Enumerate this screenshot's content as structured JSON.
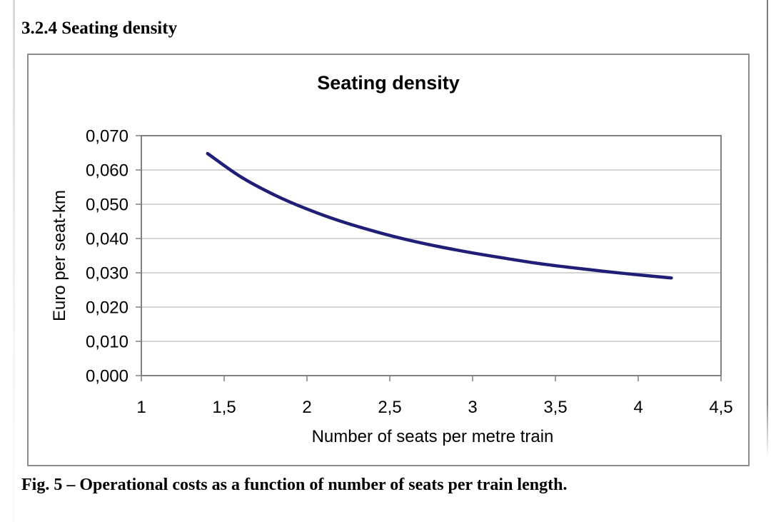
{
  "page": {
    "section_heading": "3.2.4 Seating density",
    "figure_caption": "Fig. 5 – Operational costs as a function of number of seats per train length."
  },
  "chart_data": {
    "type": "line",
    "title": "Seating density",
    "xlabel": "Number of seats per metre train",
    "ylabel": "Euro per seat-km",
    "xlim": [
      1,
      4.5
    ],
    "ylim": [
      0,
      0.07
    ],
    "grid": "horizontal-only",
    "legend_position": "none",
    "x_ticks": [
      {
        "value": 1,
        "label": "1"
      },
      {
        "value": 1.5,
        "label": "1,5"
      },
      {
        "value": 2,
        "label": "2"
      },
      {
        "value": 2.5,
        "label": "2,5"
      },
      {
        "value": 3,
        "label": "3"
      },
      {
        "value": 3.5,
        "label": "3,5"
      },
      {
        "value": 4,
        "label": "4"
      },
      {
        "value": 4.5,
        "label": "4,5"
      }
    ],
    "y_ticks": [
      {
        "value": 0,
        "label": "0,000"
      },
      {
        "value": 0.01,
        "label": "0,010"
      },
      {
        "value": 0.02,
        "label": "0,020"
      },
      {
        "value": 0.03,
        "label": "0,030"
      },
      {
        "value": 0.04,
        "label": "0,040"
      },
      {
        "value": 0.05,
        "label": "0,050"
      },
      {
        "value": 0.06,
        "label": "0,060"
      },
      {
        "value": 0.07,
        "label": "0,070"
      }
    ],
    "series": [
      {
        "name": "operational-cost-curve",
        "color": "#1f1f78",
        "x": [
          1.4,
          1.6,
          1.8,
          2.0,
          2.2,
          2.4,
          2.6,
          2.8,
          3.0,
          3.2,
          3.4,
          3.6,
          3.8,
          4.0,
          4.2
        ],
        "y": [
          0.0648,
          0.058,
          0.0528,
          0.0486,
          0.0451,
          0.0422,
          0.0397,
          0.0376,
          0.0358,
          0.0342,
          0.0327,
          0.0315,
          0.0304,
          0.0294,
          0.0285
        ]
      }
    ]
  },
  "colors": {
    "curve": "#1f1f78",
    "plot_border": "#808080",
    "gridline": "#c6c6c6",
    "tick": "#808080",
    "text": "#000000",
    "chart_box_border": "#8c8c8c",
    "page_background": "#ffffff"
  }
}
